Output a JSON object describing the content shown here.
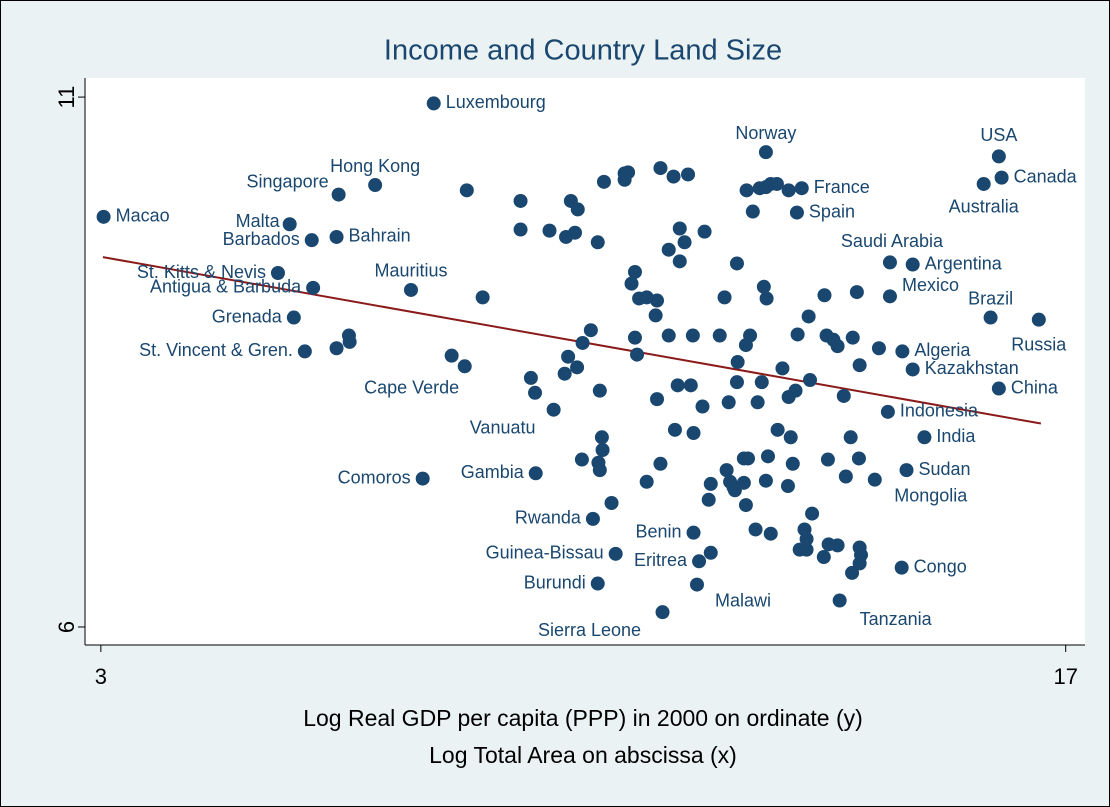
{
  "chart_data": {
    "type": "scatter",
    "title": "Income and Country Land Size",
    "xlabel": [
      "Log Real GDP per capita (PPP) in 2000 on ordinate (y)",
      "Log Total Area on abscissa (x)"
    ],
    "xlim": [
      2.77,
      17.28
    ],
    "ylim": [
      5.83,
      11.18
    ],
    "xticks": [
      3,
      17
    ],
    "yticks": [
      6,
      11
    ],
    "color": "#1a476f",
    "labels": [
      "Luxembourg",
      "Norway",
      "USA",
      "Canada",
      "Australia",
      "Hong Kong",
      "Singapore",
      "France",
      "Spain",
      "Macao",
      "Malta",
      "Barbados",
      "Bahrain",
      "Saudi Arabia",
      "Argentina",
      "St. Kitts & Nevis",
      "Mauritius",
      "Antigua & Barbuda",
      "Mexico",
      "Brazil",
      "Russia",
      "Grenada",
      "St. Vincent & Gren.",
      "Algeria",
      "Kazakhstan",
      "China",
      "Cape Verde",
      "Indonesia",
      "Vanuatu",
      "India",
      "Comoros",
      "Gambia",
      "Sudan",
      "Mongolia",
      "Rwanda",
      "Benin",
      "Guinea-Bissau",
      "Eritrea",
      "Congo",
      "Burundi",
      "Malawi",
      "Tanzania",
      "Sierra Leone",
      null,
      null,
      null,
      null,
      null,
      null,
      null,
      null,
      null,
      null,
      null,
      null,
      null,
      null,
      null,
      null,
      null,
      null,
      null,
      null,
      null,
      null,
      null,
      null,
      null,
      null,
      null,
      null,
      null,
      null,
      null,
      null,
      null,
      null,
      null,
      null,
      null,
      null,
      null,
      null,
      null,
      null,
      null,
      null,
      null,
      null,
      null,
      null,
      null,
      null,
      null,
      null,
      null,
      null,
      null,
      null,
      null,
      null,
      null,
      null,
      null,
      null,
      null,
      null,
      null,
      null,
      null,
      null,
      null,
      null,
      null,
      null,
      null,
      null,
      null,
      null,
      null,
      null,
      null,
      null,
      null,
      null,
      null,
      null,
      null,
      null,
      null,
      null,
      null,
      null,
      null,
      null,
      null,
      null,
      null,
      null,
      null,
      null,
      null,
      null,
      null,
      null,
      null,
      null,
      null,
      null,
      null,
      null,
      null,
      null,
      null,
      null,
      null,
      null,
      null,
      null,
      null,
      null,
      null,
      null,
      null,
      null,
      null,
      null,
      null
    ],
    "x": [
      7.83,
      12.65,
      16.03,
      16.07,
      15.81,
      6.98,
      6.45,
      13.17,
      13.1,
      3.04,
      5.74,
      6.06,
      6.42,
      14.45,
      14.78,
      5.57,
      7.5,
      6.08,
      14.45,
      15.91,
      16.61,
      5.8,
      5.96,
      14.63,
      14.78,
      16.03,
      8.09,
      14.42,
      9.57,
      14.95,
      7.67,
      9.31,
      14.69,
      14.23,
      10.14,
      11.6,
      10.47,
      11.68,
      14.62,
      10.21,
      11.65,
      13.72,
      11.15,
      8.31,
      9.09,
      9.82,
      9.92,
      10.3,
      10.6,
      10.65,
      10.6,
      11.12,
      11.31,
      11.52,
      12.37,
      12.56,
      12.65,
      12.72,
      12.81,
      12.98,
      12.46,
      9.09,
      9.51,
      9.75,
      9.88,
      10.21,
      11.4,
      11.47,
      11.76,
      11.24,
      11.4,
      12.23,
      10.75,
      10.7,
      10.81,
      10.92,
      11.07,
      12.05,
      12.62,
      12.66,
      13.5,
      13.97,
      8.54,
      6.6,
      6.61,
      6.42,
      11.05,
      10.11,
      9.99,
      10.75,
      11.24,
      11.59,
      11.98,
      12.36,
      12.42,
      13.11,
      13.27,
      13.53,
      13.63,
      13.69,
      13.91,
      14.29,
      14.01,
      8.28,
      9.78,
      9.91,
      9.73,
      9.24,
      9.3,
      10.24,
      10.78,
      11.37,
      11.56,
      11.07,
      11.73,
      12.11,
      12.24,
      12.23,
      12.53,
      12.59,
      12.89,
      12.98,
      13.08,
      13.29,
      13.78,
      11.33,
      11.6,
      12.82,
      13.01,
      13.88,
      10.27,
      10.28,
      9.98,
      10.22,
      10.24,
      11.12,
      10.92,
      12.08,
      12.33,
      12.39,
      12.68,
      13.04,
      13.55,
      14.0,
      13.81,
      11.85,
      12.13,
      12.18,
      12.33,
      12.65,
      12.97,
      11.82,
      12.2,
      12.36,
      10.41,
      13.32,
      12.5,
      12.72,
      13.21,
      13.24,
      13.14,
      13.24,
      13.49,
      13.56,
      13.69,
      14.01,
      14.03,
      14.01,
      13.9,
      11.85
    ],
    "values": [
      10.94,
      10.48,
      10.44,
      10.24,
      10.18,
      10.17,
      10.08,
      10.14,
      9.91,
      9.87,
      9.8,
      9.65,
      9.68,
      9.44,
      9.42,
      9.34,
      9.18,
      9.2,
      9.12,
      8.92,
      8.9,
      8.92,
      8.6,
      8.6,
      8.43,
      8.25,
      8.56,
      8.03,
      8.05,
      7.79,
      7.4,
      7.45,
      7.48,
      7.39,
      7.02,
      6.89,
      6.69,
      6.62,
      6.56,
      6.41,
      6.4,
      6.25,
      6.14,
      10.12,
      10.02,
      10.02,
      9.94,
      10.2,
      10.28,
      10.29,
      10.22,
      10.33,
      10.25,
      10.27,
      10.12,
      10.14,
      10.15,
      10.18,
      10.18,
      10.12,
      9.92,
      9.75,
      9.74,
      9.68,
      9.72,
      9.63,
      9.76,
      9.63,
      9.73,
      9.56,
      9.45,
      9.43,
      9.35,
      9.24,
      9.1,
      9.11,
      9.08,
      9.11,
      9.21,
      9.1,
      9.13,
      9.16,
      9.11,
      8.75,
      8.69,
      8.63,
      8.94,
      8.8,
      8.68,
      8.73,
      8.75,
      8.75,
      8.75,
      8.66,
      8.75,
      8.76,
      8.93,
      8.75,
      8.71,
      8.65,
      8.73,
      8.63,
      8.47,
      8.46,
      8.55,
      8.45,
      8.39,
      8.35,
      8.21,
      8.23,
      8.57,
      8.28,
      8.28,
      8.15,
      8.08,
      8.12,
      8.5,
      8.31,
      8.12,
      8.31,
      8.44,
      8.17,
      8.23,
      8.33,
      8.18,
      7.86,
      7.83,
      7.86,
      7.79,
      7.79,
      7.79,
      7.67,
      7.58,
      7.55,
      7.48,
      7.54,
      7.37,
      7.48,
      7.59,
      7.59,
      7.61,
      7.54,
      7.58,
      7.59,
      7.42,
      7.35,
      7.37,
      7.32,
      7.36,
      7.38,
      7.33,
      7.2,
      7.29,
      7.15,
      7.17,
      7.07,
      6.92,
      6.88,
      6.92,
      6.83,
      6.73,
      6.73,
      6.66,
      6.78,
      6.77,
      6.75,
      6.68,
      6.6,
      6.51,
      6.7
    ],
    "fit": {
      "x": [
        3.03,
        16.64
      ],
      "values": [
        9.49,
        7.92
      ],
      "color": "#8b1a1a"
    }
  }
}
